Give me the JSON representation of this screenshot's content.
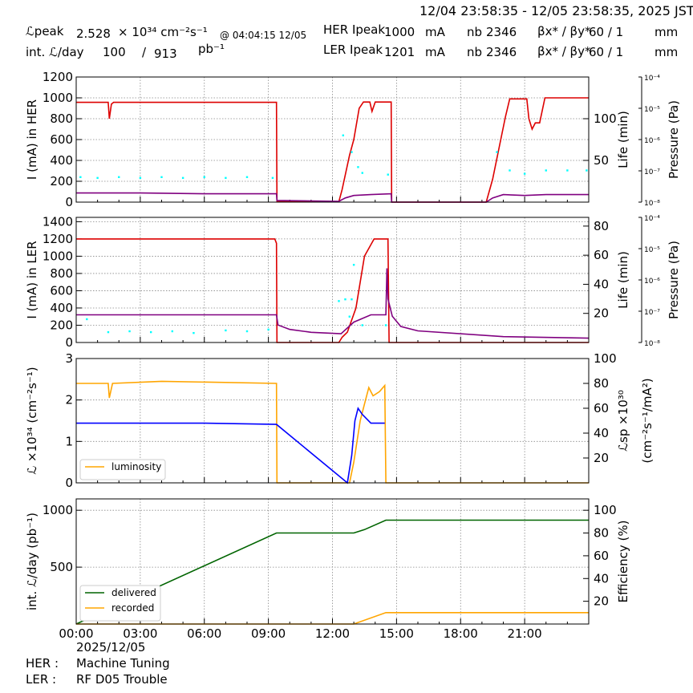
{
  "header": {
    "time_range": "12/04 23:58:35 - 12/05 23:58:35, 2025 JST",
    "lpeak_label": "ℒpeak",
    "lpeak_value": "2.528",
    "lpeak_unit": "× 10³⁴ cm⁻²s⁻¹",
    "lpeak_time": "@ 04:04:15 12/05",
    "int_label": "int. ℒ/day",
    "int_value": "100",
    "int_total": "913",
    "int_sep": "/",
    "int_unit": "pb⁻¹",
    "her_label": "HER Ipeak",
    "her_value": "1000",
    "her_unit": "mA",
    "ler_label": "LER Ipeak",
    "ler_value": "1201",
    "ler_unit": "mA",
    "nb_label": "nb",
    "her_nb": "2346",
    "ler_nb": "2346",
    "beta_label": "βx* / βy*",
    "her_beta": "60  / 1",
    "ler_beta": "60  / 1",
    "beta_unit": "mm"
  },
  "footer": {
    "date": "2025/12/05",
    "her_label": "HER :",
    "her_status": "Machine Tuning",
    "ler_label": "LER :",
    "ler_status": "RF D05 Trouble"
  },
  "colors": {
    "current": "#dd0000",
    "lifetime": "#800080",
    "pressure": "#00ffff",
    "luminosity": "#ffa500",
    "specific": "#0000ff",
    "delivered": "#006400",
    "recorded": "#ffa500"
  },
  "chart_data": [
    {
      "type": "line",
      "ylabel": "I (mA) in HER",
      "ylabel_right": "Life (min)",
      "ylabel_right2": "Pressure (Pa)",
      "ylim": [
        0,
        1200
      ],
      "yticks": [
        0,
        200,
        400,
        600,
        800,
        1000,
        1200
      ],
      "ylim_right": [
        0,
        150
      ],
      "yticks_right": [
        50,
        100
      ],
      "pressure_ticks": [
        "10⁻⁴",
        "10⁻⁵",
        "10⁻⁶",
        "10⁻⁷",
        "10⁻⁸"
      ],
      "xlim": [
        0,
        24
      ],
      "grid": true,
      "series": [
        {
          "key": "current",
          "axis": "left",
          "points": [
            [
              0,
              957
            ],
            [
              1.5,
              957
            ],
            [
              1.55,
              800
            ],
            [
              1.65,
              940
            ],
            [
              1.75,
              957
            ],
            [
              9.38,
              957
            ],
            [
              9.4,
              5
            ],
            [
              12.3,
              5
            ],
            [
              12.45,
              120
            ],
            [
              12.8,
              450
            ],
            [
              13.0,
              600
            ],
            [
              13.25,
              900
            ],
            [
              13.45,
              960
            ],
            [
              13.75,
              960
            ],
            [
              13.85,
              870
            ],
            [
              14.0,
              960
            ],
            [
              14.75,
              960
            ],
            [
              14.77,
              0
            ],
            [
              19.2,
              0
            ],
            [
              19.5,
              220
            ],
            [
              19.8,
              520
            ],
            [
              20.1,
              820
            ],
            [
              20.3,
              990
            ],
            [
              21.1,
              990
            ],
            [
              21.2,
              800
            ],
            [
              21.35,
              700
            ],
            [
              21.5,
              760
            ],
            [
              21.7,
              760
            ],
            [
              21.95,
              1000
            ],
            [
              24,
              1000
            ]
          ]
        },
        {
          "key": "lifetime",
          "axis": "right",
          "points": [
            [
              0,
              11
            ],
            [
              3,
              11
            ],
            [
              6,
              10
            ],
            [
              9.38,
              10
            ],
            [
              9.4,
              2
            ],
            [
              12.3,
              1
            ],
            [
              12.6,
              5
            ],
            [
              13.0,
              8
            ],
            [
              13.8,
              9
            ],
            [
              14.75,
              10
            ],
            [
              14.77,
              0
            ],
            [
              19.2,
              0
            ],
            [
              19.5,
              5
            ],
            [
              20.0,
              9
            ],
            [
              21.0,
              8
            ],
            [
              22.0,
              9
            ],
            [
              24,
              9
            ]
          ]
        },
        {
          "key": "pressure",
          "axis": "right",
          "style": "dots",
          "points": [
            [
              0.2,
              30
            ],
            [
              1.0,
              29
            ],
            [
              2.0,
              30
            ],
            [
              3.0,
              29
            ],
            [
              4.0,
              30
            ],
            [
              5.0,
              29
            ],
            [
              6.0,
              30
            ],
            [
              7.0,
              29
            ],
            [
              8.0,
              30
            ],
            [
              9.2,
              29
            ],
            [
              12.5,
              80
            ],
            [
              12.9,
              60
            ],
            [
              13.2,
              42
            ],
            [
              13.4,
              35
            ],
            [
              14.6,
              33
            ],
            [
              19.7,
              60
            ],
            [
              20.3,
              38
            ],
            [
              21.0,
              34
            ],
            [
              22.0,
              38
            ],
            [
              23.0,
              38
            ],
            [
              23.9,
              38
            ]
          ]
        }
      ]
    },
    {
      "type": "line",
      "ylabel": "I (mA) in LER",
      "ylabel_right": "Life (min)",
      "ylabel_right2": "Pressure (Pa)",
      "ylim": [
        0,
        1450
      ],
      "yticks": [
        0,
        200,
        400,
        600,
        800,
        1000,
        1200,
        1400
      ],
      "ylim_right": [
        0,
        86
      ],
      "yticks_right": [
        20,
        40,
        60,
        80
      ],
      "pressure_ticks": [
        "10⁻⁴",
        "10⁻⁵",
        "10⁻⁶",
        "10⁻⁷",
        "10⁻⁸"
      ],
      "xlim": [
        0,
        24
      ],
      "grid": true,
      "series": [
        {
          "key": "current",
          "axis": "left",
          "points": [
            [
              0,
              1200
            ],
            [
              9.3,
              1200
            ],
            [
              9.38,
              1150
            ],
            [
              9.4,
              0
            ],
            [
              12.3,
              0
            ],
            [
              12.45,
              60
            ],
            [
              12.7,
              120
            ],
            [
              13.1,
              400
            ],
            [
              13.5,
              1000
            ],
            [
              13.95,
              1200
            ],
            [
              14.6,
              1200
            ],
            [
              14.65,
              0
            ],
            [
              24,
              0
            ]
          ]
        },
        {
          "key": "lifetime",
          "axis": "right",
          "points": [
            [
              0,
              19
            ],
            [
              9.38,
              19
            ],
            [
              9.45,
              12
            ],
            [
              10.0,
              9
            ],
            [
              11.0,
              7
            ],
            [
              12.4,
              6
            ],
            [
              13.0,
              14
            ],
            [
              13.8,
              19
            ],
            [
              14.5,
              19
            ],
            [
              14.55,
              51
            ],
            [
              14.6,
              30
            ],
            [
              14.8,
              18
            ],
            [
              15.2,
              11
            ],
            [
              16,
              8
            ],
            [
              20,
              4
            ],
            [
              24,
              3
            ]
          ]
        },
        {
          "key": "pressure",
          "axis": "left",
          "style": "dots",
          "points": [
            [
              0.5,
              270
            ],
            [
              1.5,
              120
            ],
            [
              2.5,
              130
            ],
            [
              3.5,
              120
            ],
            [
              4.5,
              130
            ],
            [
              5.5,
              110
            ],
            [
              7.0,
              140
            ],
            [
              8.0,
              130
            ],
            [
              9.0,
              150
            ],
            [
              12.3,
              480
            ],
            [
              12.6,
              500
            ],
            [
              12.8,
              300
            ],
            [
              12.9,
              500
            ],
            [
              13.0,
              900
            ],
            [
              13.4,
              200
            ],
            [
              14.5,
              200
            ]
          ]
        }
      ]
    },
    {
      "type": "line",
      "ylabel": "ℒ ×10³⁴ (cm⁻²s⁻¹)",
      "ylabel_right": "ℒsp ×10³⁰",
      "ylabel_right_sub": "(cm⁻²s⁻¹/mA²)",
      "ylim": [
        0,
        3
      ],
      "yticks": [
        0,
        1,
        2,
        3
      ],
      "ylim_right": [
        0,
        100
      ],
      "yticks_right": [
        20,
        40,
        60,
        80,
        100
      ],
      "xlim": [
        0,
        24
      ],
      "grid": true,
      "legend": [
        "luminosity"
      ],
      "legend_position": "lower-left",
      "series": [
        {
          "key": "luminosity",
          "name": "luminosity",
          "axis": "left",
          "points": [
            [
              0,
              2.4
            ],
            [
              1.5,
              2.4
            ],
            [
              1.55,
              2.05
            ],
            [
              1.7,
              2.4
            ],
            [
              4,
              2.45
            ],
            [
              9.38,
              2.4
            ],
            [
              9.4,
              0
            ],
            [
              12.8,
              0
            ],
            [
              13.0,
              0.5
            ],
            [
              13.3,
              1.5
            ],
            [
              13.5,
              1.9
            ],
            [
              13.7,
              2.3
            ],
            [
              13.9,
              2.1
            ],
            [
              14.2,
              2.2
            ],
            [
              14.45,
              2.35
            ],
            [
              14.5,
              0
            ],
            [
              24,
              0
            ]
          ]
        },
        {
          "key": "specific",
          "axis": "right",
          "points": [
            [
              0,
              48
            ],
            [
              3,
              48
            ],
            [
              6,
              48
            ],
            [
              9.38,
              47
            ],
            [
              12.7,
              0
            ],
            [
              12.9,
              22
            ],
            [
              13.05,
              50
            ],
            [
              13.2,
              60
            ],
            [
              13.4,
              55
            ],
            [
              13.8,
              48
            ],
            [
              14.45,
              48
            ]
          ]
        }
      ]
    },
    {
      "type": "line",
      "ylabel": "int. ℒ/day (pb⁻¹)",
      "ylabel_right": "Efficiency (%)",
      "ylim": [
        0,
        1100
      ],
      "yticks": [
        500,
        1000
      ],
      "ylim_right": [
        0,
        110
      ],
      "yticks_right": [
        20,
        40,
        60,
        80,
        100
      ],
      "xlim": [
        0,
        24
      ],
      "xtick_labels": [
        "00:00",
        "03:00",
        "06:00",
        "09:00",
        "12:00",
        "15:00",
        "18:00",
        "21:00"
      ],
      "grid": true,
      "legend": [
        "delivered",
        "recorded"
      ],
      "legend_position": "lower-left",
      "series": [
        {
          "key": "delivered",
          "name": "delivered",
          "axis": "left",
          "points": [
            [
              0,
              0
            ],
            [
              9.38,
              800
            ],
            [
              13.0,
              800
            ],
            [
              13.5,
              830
            ],
            [
              14.5,
              913
            ],
            [
              24,
              913
            ]
          ]
        },
        {
          "key": "recorded",
          "name": "recorded",
          "axis": "left",
          "points": [
            [
              0,
              0
            ],
            [
              13.0,
              0
            ],
            [
              14.5,
              100
            ],
            [
              24,
              100
            ]
          ]
        }
      ]
    }
  ]
}
